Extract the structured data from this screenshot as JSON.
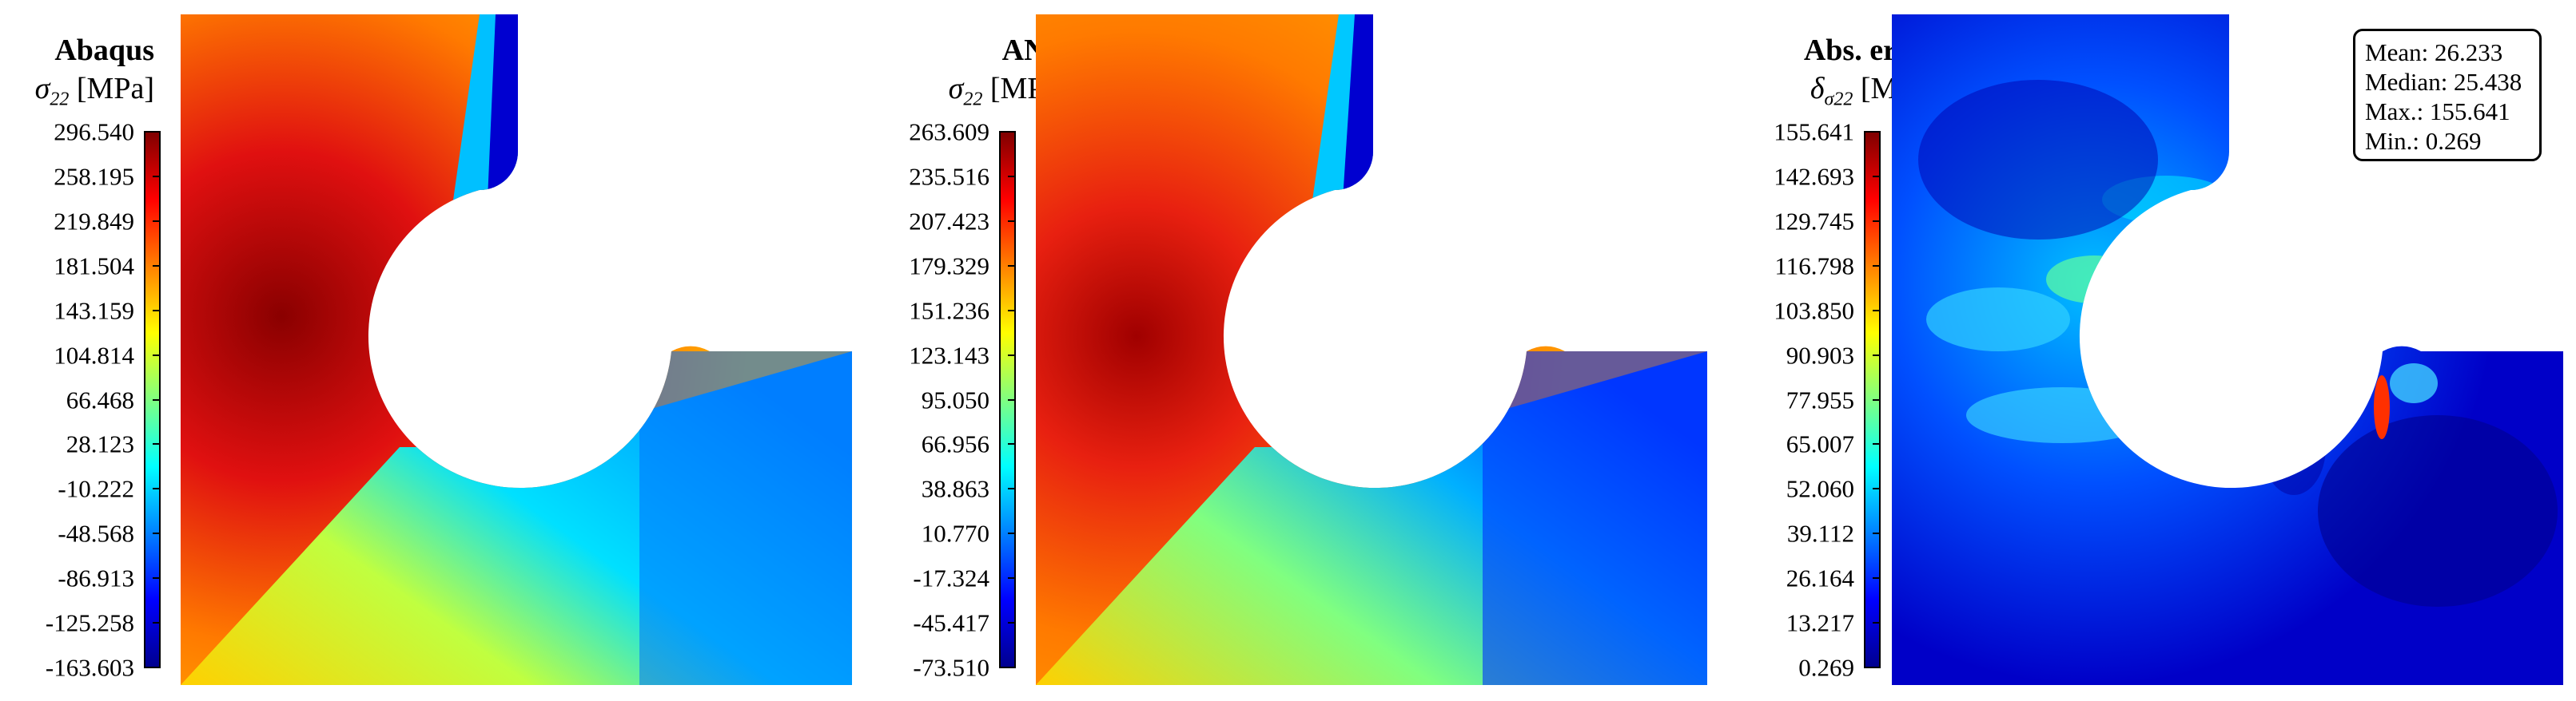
{
  "chart_data": [
    {
      "type": "heatmap",
      "title": "Abaqus",
      "quantity": "σ",
      "quantity_sub": "22",
      "unit": "[MPa]",
      "colormap": "jet",
      "colorbar_ticks": [
        "296.540",
        "258.195",
        "219.849",
        "181.504",
        "143.159",
        "104.814",
        "66.468",
        "28.123",
        "-10.222",
        "-48.568",
        "-86.913",
        "-125.258",
        "-163.603"
      ],
      "range": [
        -163.603,
        296.54
      ]
    },
    {
      "type": "heatmap",
      "title": "ANN",
      "quantity": "σ",
      "quantity_sub": "22",
      "unit": "[MPa]",
      "colormap": "jet",
      "colorbar_ticks": [
        "263.609",
        "235.516",
        "207.423",
        "179.329",
        "151.236",
        "123.143",
        "95.050",
        "66.956",
        "38.863",
        "10.770",
        "-17.324",
        "-45.417",
        "-73.510"
      ],
      "range": [
        -73.51,
        263.609
      ]
    },
    {
      "type": "heatmap",
      "title": "Abs. error",
      "quantity": "δ",
      "quantity_sub": "σ22",
      "unit": "[MPa]",
      "colormap": "jet",
      "colorbar_ticks": [
        "155.641",
        "142.693",
        "129.745",
        "116.798",
        "103.850",
        "90.903",
        "77.955",
        "65.007",
        "52.060",
        "39.112",
        "26.164",
        "13.217",
        "0.269"
      ],
      "range": [
        0.269,
        155.641
      ],
      "stats": {
        "mean": "Mean: 26.233",
        "median": "Median: 25.438",
        "max": "Max.: 155.641",
        "min": "Min.: 0.269"
      }
    }
  ]
}
